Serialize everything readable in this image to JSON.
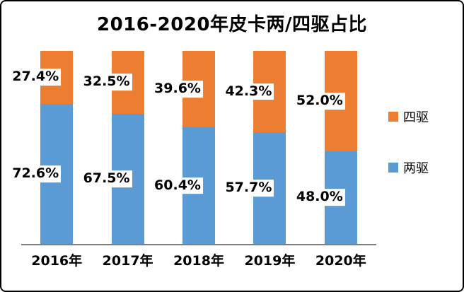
{
  "chart_data": {
    "type": "bar",
    "stacked": true,
    "percent": true,
    "title": "2016-2020年皮卡两/四驱占比",
    "categories": [
      "2016年",
      "2017年",
      "2018年",
      "2019年",
      "2020年"
    ],
    "series": [
      {
        "name": "四驱",
        "color": "#ED7D31",
        "values": [
          27.4,
          32.5,
          39.6,
          42.3,
          52.0
        ],
        "labels": [
          "27.4%",
          "32.5%",
          "39.6%",
          "42.3%",
          "52.0%"
        ]
      },
      {
        "name": "两驱",
        "color": "#5B9BD5",
        "values": [
          72.6,
          67.5,
          60.4,
          57.7,
          48.0
        ],
        "labels": [
          "72.6%",
          "67.5%",
          "60.4%",
          "57.7%",
          "48.0%"
        ]
      }
    ],
    "ylim": [
      0,
      100
    ],
    "grid": false,
    "legend_position": "right",
    "axis_color": "#7f7f7f"
  }
}
